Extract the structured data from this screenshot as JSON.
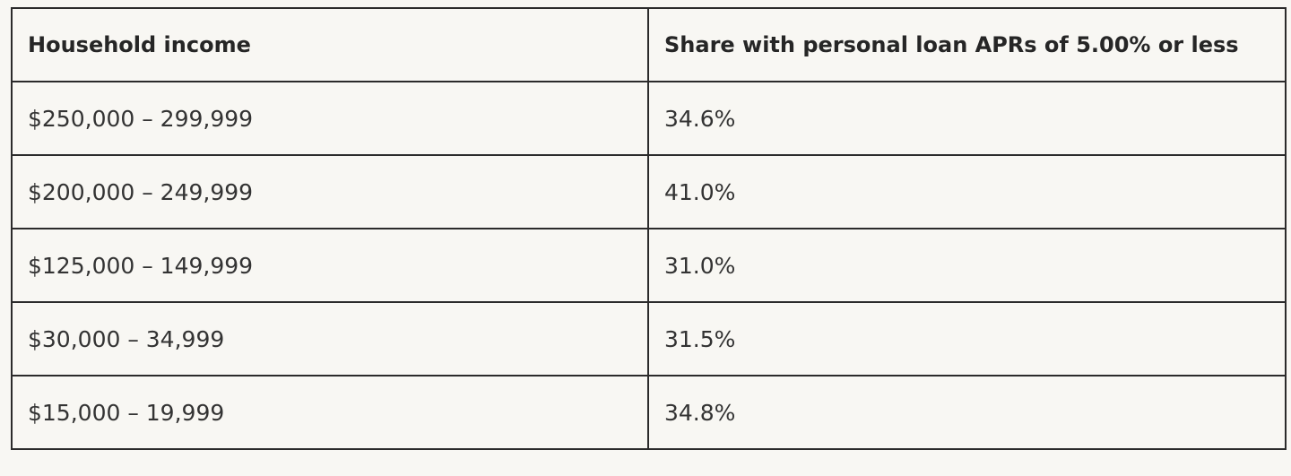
{
  "table": {
    "headers": [
      "Household income",
      "Share with personal loan APRs of 5.00% or less"
    ],
    "rows": [
      [
        "$250,000 – 299,999",
        "34.6%"
      ],
      [
        "$200,000 – 249,999",
        "41.0%"
      ],
      [
        "$125,000 – 149,999",
        "31.0%"
      ],
      [
        "$30,000 – 34,999",
        "31.5%"
      ],
      [
        "$15,000 – 19,999",
        "34.8%"
      ]
    ]
  },
  "colors": {
    "background": "#f8f7f3",
    "border": "#2b2b2b",
    "text": "#2a2a2a"
  }
}
